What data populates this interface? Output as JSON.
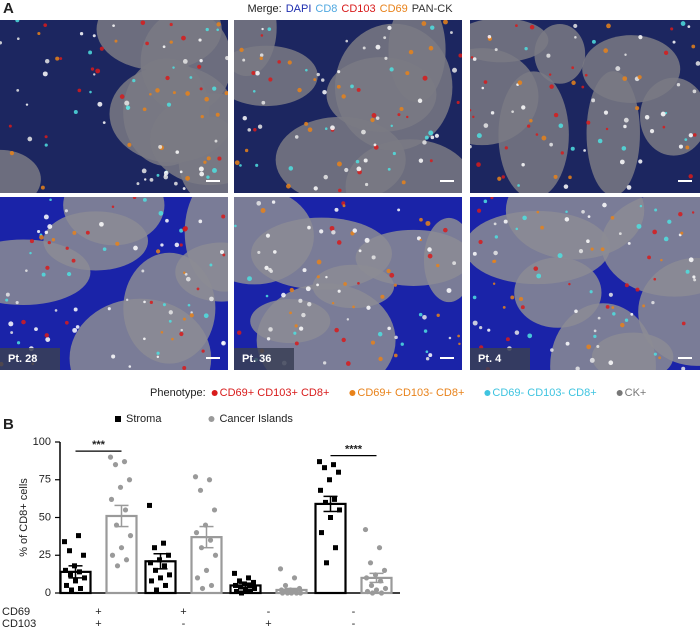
{
  "panel_a": {
    "label": "A",
    "merge_legend": {
      "prefix": "Merge:",
      "items": [
        {
          "text": "DAPI",
          "color": "#1f2fb0"
        },
        {
          "text": "CD8",
          "color": "#4fa8e0"
        },
        {
          "text": "CD103",
          "color": "#d81b1b"
        },
        {
          "text": "CD69",
          "color": "#e8821a"
        },
        {
          "text": "PAN-CK",
          "color": "#333333"
        }
      ]
    },
    "patient_labels": [
      "Pt. 28",
      "Pt. 36",
      "Pt. 4"
    ]
  },
  "phenotype_legend": {
    "prefix": "Phenotype:",
    "items": [
      {
        "text": "CD69+ CD103+ CD8+",
        "color": "#d81b1b"
      },
      {
        "text": "CD69+ CD103- CD8+",
        "color": "#e8821a"
      },
      {
        "text": "CD69- CD103- CD8+",
        "color": "#3fc4e0"
      },
      {
        "text": "CK+",
        "color": "#777777"
      }
    ]
  },
  "panel_b_label": "B",
  "chart_data": {
    "type": "bar",
    "y_label": "% of CD8+ cells",
    "row_labels": [
      "CD69",
      "CD103"
    ],
    "categories": [
      [
        "+",
        "+"
      ],
      [
        "+",
        "-"
      ],
      [
        "-",
        "+"
      ],
      [
        "-",
        "-"
      ]
    ],
    "significance": [
      "***",
      null,
      null,
      "****"
    ],
    "ylim": [
      0,
      100
    ],
    "yticks": [
      0,
      25,
      50,
      75,
      100
    ],
    "series": [
      {
        "name": "Stroma",
        "color": "#000000",
        "marker": "square",
        "values": [
          14,
          21,
          5,
          59
        ],
        "errors": [
          4,
          5,
          1.5,
          5
        ],
        "points": [
          [
            34,
            38,
            28,
            25,
            18,
            15,
            14,
            12,
            10,
            8,
            5,
            3,
            2
          ],
          [
            58,
            33,
            30,
            25,
            22,
            20,
            18,
            15,
            12,
            10,
            8,
            5,
            2
          ],
          [
            13,
            10,
            8,
            7,
            6,
            5,
            5,
            4,
            3,
            2,
            1,
            1,
            0
          ],
          [
            87,
            85,
            83,
            80,
            75,
            68,
            62,
            60,
            55,
            50,
            40,
            30,
            20
          ]
        ]
      },
      {
        "name": "Cancer Islands",
        "color": "#9a9a9a",
        "marker": "circle",
        "values": [
          51,
          37,
          2,
          10
        ],
        "errors": [
          7,
          7,
          1,
          3
        ],
        "points": [
          [
            90,
            87,
            85,
            75,
            70,
            62,
            55,
            45,
            38,
            30,
            25,
            22,
            18
          ],
          [
            77,
            75,
            68,
            55,
            45,
            40,
            35,
            30,
            25,
            15,
            10,
            5,
            3
          ],
          [
            16,
            10,
            5,
            3,
            2,
            2,
            1,
            1,
            0,
            0,
            0,
            0,
            0
          ],
          [
            42,
            30,
            20,
            15,
            12,
            10,
            8,
            5,
            3,
            2,
            1,
            0,
            0
          ]
        ]
      }
    ]
  }
}
